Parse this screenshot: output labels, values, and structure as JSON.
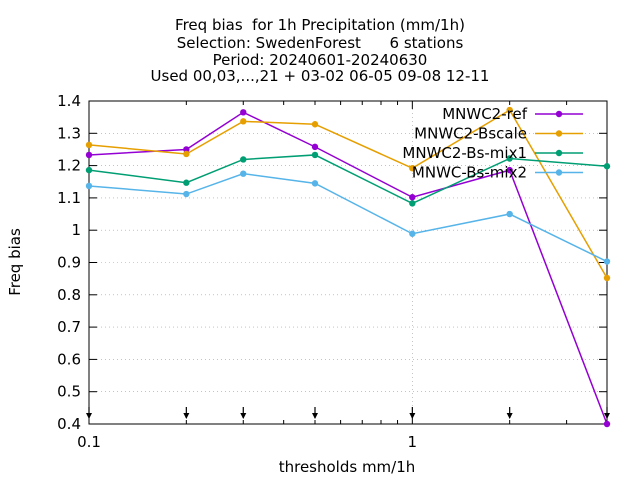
{
  "title_lines": [
    "Freq bias  for 1h Precipitation (mm/1h)",
    "Selection: SwedenForest      6 stations",
    "Period: 20240601-20240630",
    "Used 00,03,...,21 + 03-02 06-05 09-08 12-11"
  ],
  "chart_data": {
    "type": "line",
    "title": "Freq bias  for 1h Precipitation (mm/1h)",
    "xlabel": "thresholds mm/1h",
    "ylabel": "Freq bias",
    "xscale": "log",
    "xlim": [
      0.1,
      4
    ],
    "ylim": [
      0.4,
      1.4
    ],
    "x_ticks": [
      {
        "value": 0.1,
        "label": "0.1"
      },
      {
        "value": 1,
        "label": "1"
      }
    ],
    "y_ticks": [
      {
        "value": 0.4,
        "label": "0.4"
      },
      {
        "value": 0.5,
        "label": "0.5"
      },
      {
        "value": 0.6,
        "label": "0.6"
      },
      {
        "value": 0.7,
        "label": "0.7"
      },
      {
        "value": 0.8,
        "label": "0.8"
      },
      {
        "value": 0.9,
        "label": "0.9"
      },
      {
        "value": 1.0,
        "label": "1"
      },
      {
        "value": 1.1,
        "label": "1.1"
      },
      {
        "value": 1.2,
        "label": "1.2"
      },
      {
        "value": 1.3,
        "label": "1.3"
      },
      {
        "value": 1.4,
        "label": "1.4"
      }
    ],
    "grid": true,
    "legend_position": "top-right",
    "x": [
      0.1,
      0.2,
      0.3,
      0.5,
      1,
      2,
      4
    ],
    "series": [
      {
        "name": "MNWC2-ref",
        "color": "#9400d3",
        "values": [
          1.233,
          1.25,
          1.365,
          1.258,
          1.102,
          1.186,
          0.4
        ]
      },
      {
        "name": "MNWC2-Bscale",
        "color": "#e69f00",
        "values": [
          1.264,
          1.236,
          1.337,
          1.328,
          1.192,
          1.372,
          0.852
        ]
      },
      {
        "name": "MNWC2-Bs-mix1",
        "color": "#009e73",
        "values": [
          1.186,
          1.147,
          1.219,
          1.233,
          1.083,
          1.222,
          1.198
        ]
      },
      {
        "name": "MNWC-Bs-mix2",
        "color": "#56b4e9",
        "values": [
          1.137,
          1.112,
          1.175,
          1.145,
          0.989,
          1.05,
          0.903
        ]
      }
    ],
    "arrow_markers_x": [
      0.1,
      0.2,
      0.3,
      0.5,
      1,
      2,
      4
    ]
  }
}
